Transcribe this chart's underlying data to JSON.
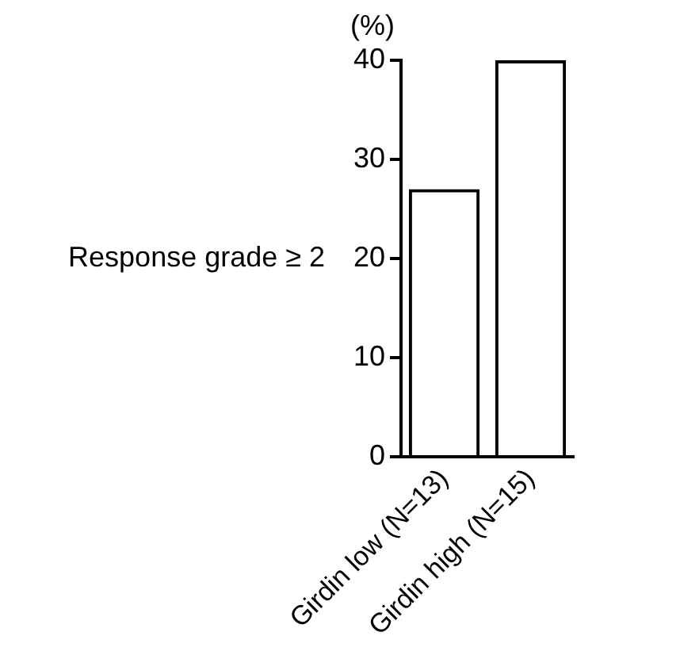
{
  "chart_data": {
    "type": "bar",
    "title": "Response grade ≥ 2",
    "ylabel": "(%)",
    "categories": [
      "Girdin low (N=13)",
      "Girdin high (N=15)"
    ],
    "values": [
      27,
      40
    ],
    "color": "#000000",
    "ylim": [
      0,
      40
    ],
    "yticks": [
      0,
      10,
      20,
      30,
      40
    ],
    "grid": false,
    "legend": false
  }
}
